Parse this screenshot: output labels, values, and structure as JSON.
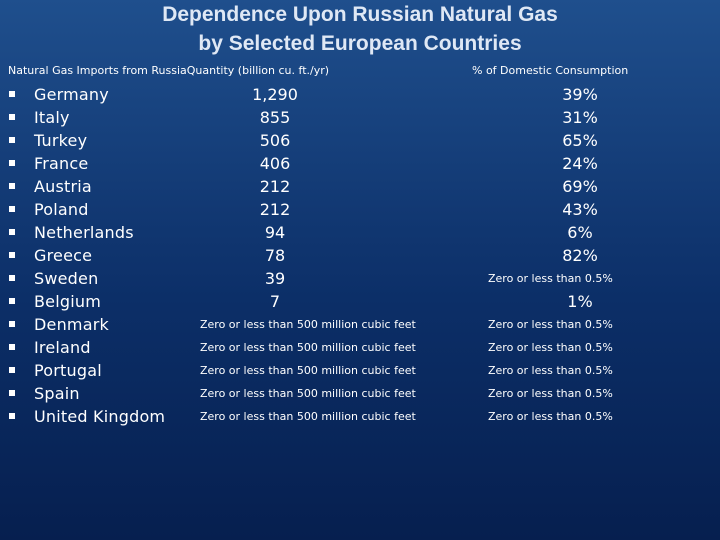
{
  "title": {
    "line1": "Dependence Upon Russian Natural Gas",
    "line2": "by Selected European Countries"
  },
  "headers": {
    "imports": "Natural Gas Imports from RussiaQuantity (billion cu. ft./yr)",
    "percent": "% of Domestic Consumption"
  },
  "rows": [
    {
      "country": "Germany",
      "quantity": "1,290",
      "percent": "39%"
    },
    {
      "country": "Italy",
      "quantity": "855",
      "percent": "31%"
    },
    {
      "country": "Turkey",
      "quantity": "506",
      "percent": "65%"
    },
    {
      "country": "France",
      "quantity": "406",
      "percent": "24%"
    },
    {
      "country": "Austria",
      "quantity": "212",
      "percent": "69%"
    },
    {
      "country": "Poland",
      "quantity": "212",
      "percent": "43%"
    },
    {
      "country": "Netherlands",
      "quantity": "94",
      "percent": "6%"
    },
    {
      "country": "Greece",
      "quantity": "78",
      "percent": "82%"
    },
    {
      "country": "Sweden",
      "quantity": "39",
      "percent": "Zero or less than 0.5%"
    },
    {
      "country": "Belgium",
      "quantity": "7",
      "percent": "1%"
    },
    {
      "country": "Denmark",
      "quantity": "Zero or less than 500 million cubic feet",
      "percent": "Zero or less than 0.5%"
    },
    {
      "country": "Ireland",
      "quantity": "Zero or less than 500 million cubic feet",
      "percent": "Zero or less than 0.5%"
    },
    {
      "country": "Portugal",
      "quantity": "Zero or less than 500 million cubic feet",
      "percent": "Zero or less than 0.5%"
    },
    {
      "country": "Spain",
      "quantity": "Zero or less than 500 million cubic feet",
      "percent": "Zero or less than 0.5%"
    },
    {
      "country": "United Kingdom",
      "quantity": "Zero or less than 500 million cubic feet",
      "percent": "Zero or less than 0.5%"
    }
  ]
}
